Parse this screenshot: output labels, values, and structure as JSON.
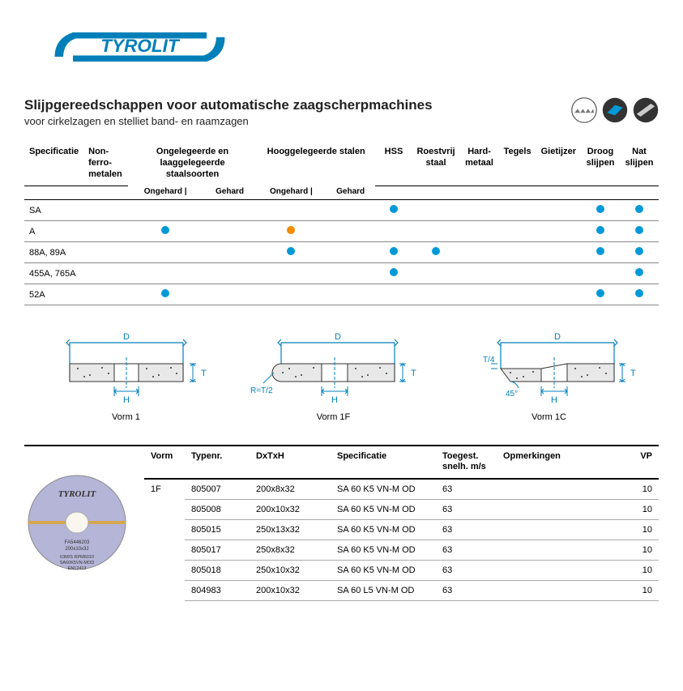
{
  "brand": "TYROLIT",
  "brand_color": "#007fb8",
  "accent_blue": "#0099d8",
  "accent_orange": "#f28c00",
  "title": "Slijpgereedschappen voor automatische zaagscherpmachines",
  "subtitle": "voor cirkelzagen en stelliet band- en raamzagen",
  "spec_headers": {
    "spec": "Specificatie",
    "nonferro": "Non-ferro-metalen",
    "lowalloy": "Ongelegeerde en laaggelegeerde staalsoorten",
    "highalloy": "Hooggelegeerde stalen",
    "hss": "HSS",
    "stainless": "Roestvrij staal",
    "hardmetal": "Hard-metaal",
    "tiles": "Tegels",
    "castiron": "Gietijzer",
    "drygrind": "Droog slijpen",
    "wetgrind": "Nat slijpen",
    "unhardened": "Ongehard",
    "hardened": "Gehard"
  },
  "spec_rows": [
    {
      "spec": "SA",
      "cells": [
        "",
        "",
        "",
        "",
        "",
        "blue",
        "",
        "",
        "",
        "",
        "blue",
        "blue"
      ]
    },
    {
      "spec": "A",
      "cells": [
        "",
        "blue",
        "",
        "orange",
        "",
        "",
        "",
        "",
        "",
        "",
        "blue",
        "blue"
      ]
    },
    {
      "spec": "88A, 89A",
      "cells": [
        "",
        "",
        "",
        "blue",
        "",
        "blue",
        "blue",
        "",
        "",
        "",
        "blue",
        "blue"
      ]
    },
    {
      "spec": "455A, 765A",
      "cells": [
        "",
        "",
        "",
        "",
        "",
        "blue",
        "",
        "",
        "",
        "",
        "",
        "blue"
      ]
    },
    {
      "spec": "52A",
      "cells": [
        "",
        "blue",
        "",
        "",
        "",
        "",
        "",
        "",
        "",
        "",
        "blue",
        "blue"
      ]
    }
  ],
  "diagram_labels": {
    "v1": "Vorm 1",
    "v1f": "Vorm 1F",
    "v1c": "Vorm 1C"
  },
  "diagram_letters": {
    "D": "D",
    "T": "T",
    "H": "H",
    "R": "R=T/2",
    "T4": "T/4",
    "angle": "45°"
  },
  "prod_headers": {
    "vorm": "Vorm",
    "typenr": "Typenr.",
    "dxtxh": "DxTxH",
    "spec": "Specificatie",
    "speed": "Toegest. snelh. m/s",
    "remarks": "Opmerkingen",
    "vp": "VP"
  },
  "prod_vorm": "1F",
  "products": [
    {
      "typenr": "805007",
      "dim": "200x8x32",
      "spec": "SA 60 K5 VN-M OD",
      "speed": "63",
      "remarks": "",
      "vp": "10"
    },
    {
      "typenr": "805008",
      "dim": "200x10x32",
      "spec": "SA 60 K5 VN-M OD",
      "speed": "63",
      "remarks": "",
      "vp": "10"
    },
    {
      "typenr": "805015",
      "dim": "250x13x32",
      "spec": "SA 60 K5 VN-M OD",
      "speed": "63",
      "remarks": "",
      "vp": "10"
    },
    {
      "typenr": "805017",
      "dim": "250x8x32",
      "spec": "SA 60 K5 VN-M OD",
      "speed": "63",
      "remarks": "",
      "vp": "10"
    },
    {
      "typenr": "805018",
      "dim": "250x10x32",
      "spec": "SA 60 K5 VN-M OD",
      "speed": "63",
      "remarks": "",
      "vp": "10"
    },
    {
      "typenr": "804983",
      "dim": "200x10x32",
      "spec": "SA 60 L5 VN-M OD",
      "speed": "63",
      "remarks": "",
      "vp": "10"
    }
  ],
  "wheel_label": {
    "brand": "TYROLIT",
    "ref": "FA5446203",
    "dim": "200x10x32",
    "speed": "63M/S  RPM6010",
    "spec": "SA60K5VN-MOD",
    "std": "EN12413"
  }
}
